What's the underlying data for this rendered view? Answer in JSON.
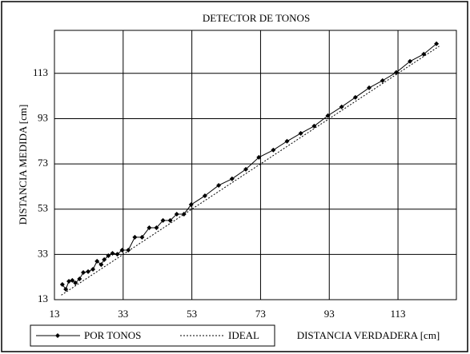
{
  "chart_data": {
    "type": "line",
    "title": "DETECTOR DE TONOS",
    "xlabel": "DISTANCIA VERDADERA [cm]",
    "ylabel": "DISTANCIA MEDIDA [cm]",
    "xlim": [
      13,
      130
    ],
    "ylim": [
      13,
      132
    ],
    "xticks": [
      13,
      33,
      53,
      73,
      93,
      113
    ],
    "yticks": [
      13,
      33,
      53,
      73,
      93,
      113
    ],
    "grid": true,
    "legend": "bottom-left",
    "series": [
      {
        "name": "POR TONOS",
        "color": "#000000",
        "style": "solid",
        "markers": true,
        "x": [
          15.3,
          16.3,
          17.2,
          18.2,
          19.1,
          20.3,
          21.4,
          22.8,
          24.2,
          25.4,
          26.6,
          27.5,
          28.7,
          29.9,
          31.3,
          32.7,
          34.5,
          36.4,
          38.5,
          40.6,
          42.7,
          44.6,
          46.7,
          48.6,
          50.7,
          52.8,
          56.8,
          60.8,
          64.7,
          68.7,
          72.5,
          76.7,
          80.7,
          84.7,
          88.6,
          92.6,
          96.6,
          100.6,
          104.6,
          108.5,
          112.5,
          116.5,
          120.5,
          124.2
        ],
        "values": [
          19.7,
          17.6,
          21.1,
          21.5,
          20.4,
          22.2,
          25,
          25.4,
          26.4,
          30,
          28.5,
          30.7,
          32.4,
          33.5,
          33.1,
          34.9,
          34.9,
          40.6,
          40.6,
          44.8,
          44.8,
          48,
          48,
          50.8,
          50.8,
          55,
          58.9,
          63.5,
          66.4,
          70.6,
          75.9,
          79.1,
          83,
          86.5,
          89.7,
          94.3,
          98.2,
          102.4,
          106.6,
          109.8,
          113.4,
          118.3,
          121.5,
          126.1
        ]
      },
      {
        "name": "IDEAL",
        "color": "#000000",
        "style": "dotted",
        "markers": false,
        "x": [
          15,
          125
        ],
        "values": [
          15,
          125
        ]
      }
    ]
  }
}
